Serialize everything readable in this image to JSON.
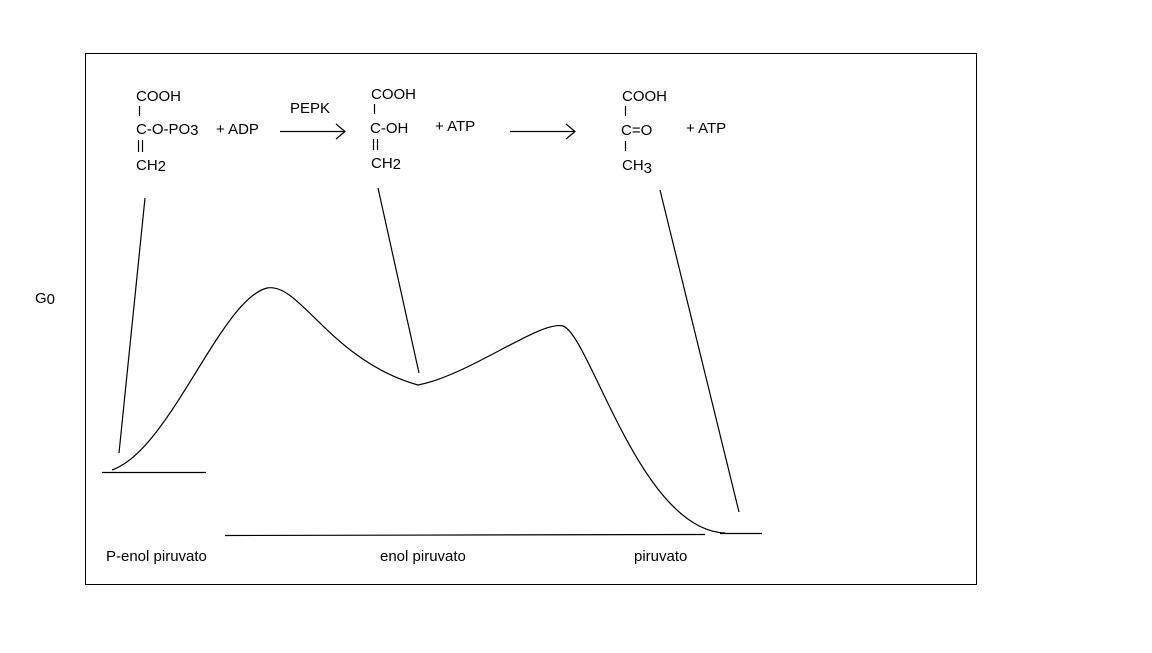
{
  "axis_label": {
    "main": "G",
    "sub": "0"
  },
  "molecules": [
    {
      "top": "COOH",
      "middle": "C-O-PO",
      "middle_sub": "3",
      "bottom": "CH",
      "bottom_sub": "2"
    },
    {
      "top": "COOH",
      "middle": "C-OH",
      "bottom": "CH",
      "bottom_sub": "2"
    },
    {
      "top": "COOH",
      "middle": "C=O",
      "bottom": "CH",
      "bottom_sub": "3"
    }
  ],
  "reaction": {
    "reagent_1": "+ ADP",
    "enzyme": "PEPK",
    "product_1": "+ ATP",
    "product_2": "+ ATP"
  },
  "states": [
    "P-enol piruvato",
    "enol piruvato",
    "piruvato"
  ]
}
